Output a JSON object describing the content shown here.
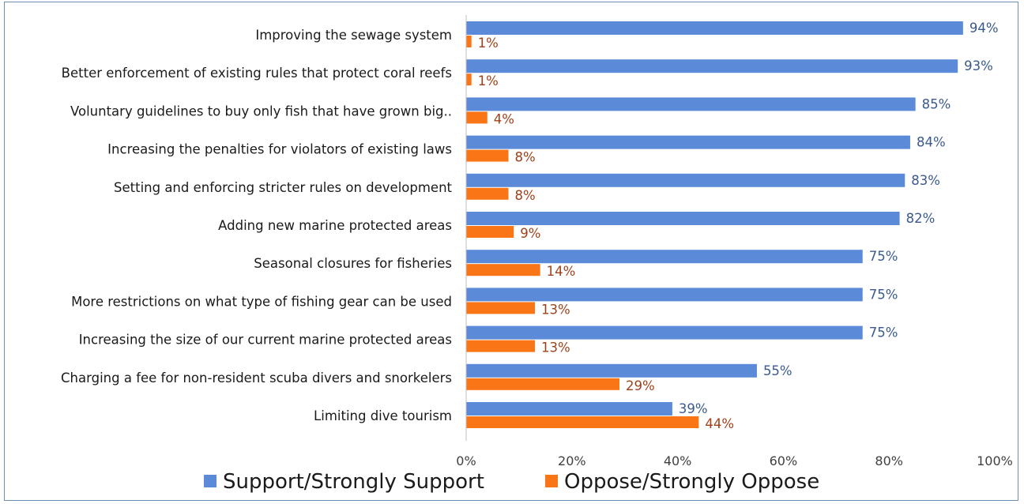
{
  "chart_data": {
    "type": "bar",
    "orientation": "horizontal",
    "categories": [
      "Improving the sewage system",
      "Better enforcement of existing rules that protect coral reefs",
      "Voluntary guidelines to buy only fish that have grown big..",
      "Increasing the penalties for violators of existing laws",
      "Setting and enforcing stricter rules on development",
      "Adding new marine protected areas",
      "Seasonal closures for fisheries",
      "More restrictions on what type of fishing gear can be used",
      "Increasing the size of our current marine protected areas",
      "Charging a fee for non-resident scuba divers and snorkelers",
      "Limiting dive tourism"
    ],
    "series": [
      {
        "name": "Support/Strongly Support",
        "color": "#5b8bd8",
        "values": [
          94,
          93,
          85,
          84,
          83,
          82,
          75,
          75,
          75,
          55,
          39
        ],
        "labels": [
          "94%",
          "93%",
          "85%",
          "84%",
          "83%",
          "82%",
          "75%",
          "75%",
          "75%",
          "55%",
          "39%"
        ]
      },
      {
        "name": "Oppose/Strongly Oppose",
        "color": "#f97516",
        "values": [
          1,
          1,
          4,
          8,
          8,
          9,
          14,
          13,
          13,
          29,
          44
        ],
        "labels": [
          "1%",
          "1%",
          "4%",
          "8%",
          "8%",
          "9%",
          "14%",
          "13%",
          "13%",
          "29%",
          "44%"
        ]
      }
    ],
    "xlim": [
      0,
      100
    ],
    "xticks": [
      "0%",
      "20%",
      "40%",
      "60%",
      "80%",
      "100%"
    ],
    "legend_position": "bottom",
    "grid": false
  }
}
